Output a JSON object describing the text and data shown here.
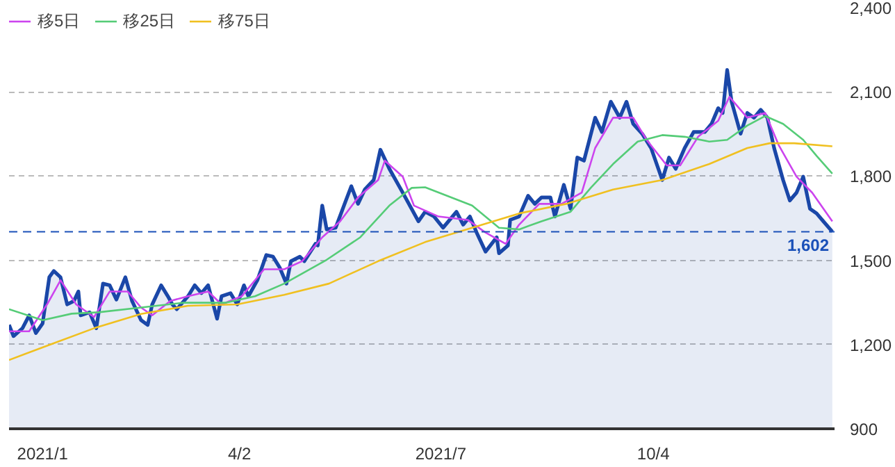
{
  "chart_data": {
    "type": "line",
    "xlim": [
      "2020-12-20",
      "2021-12-24"
    ],
    "xticks": [
      {
        "value": "2021-01-04",
        "label": "2021/1"
      },
      {
        "value": "2021-04-02",
        "label": "4/2"
      },
      {
        "value": "2021-07-01",
        "label": "2021/7"
      },
      {
        "value": "2021-10-04",
        "label": "10/4"
      }
    ],
    "ylim": [
      900,
      2400
    ],
    "yticks": [
      900,
      {
        "value": 1200,
        "label": "1,200"
      },
      {
        "value": 1500,
        "label": "1,500"
      },
      {
        "value": 1800,
        "label": "1,800"
      },
      {
        "value": 2100,
        "label": "2,100"
      },
      {
        "value": 2400,
        "label": "2,400"
      }
    ],
    "grid": "y",
    "legend": "top left",
    "ref_lines": [
      {
        "axis": "y",
        "value": 1602,
        "label": "1,602",
        "color": "#1a50b8",
        "line_style": "dashed"
      }
    ],
    "series": [
      {
        "type": "area",
        "color": "#1a47a8",
        "x": [
          "2020-12-20",
          "2020-12-22",
          "2020-12-26",
          "2020-12-29",
          "2021-01-01",
          "2021-01-04",
          "2021-01-07",
          "2021-01-09",
          "2021-01-12",
          "2021-01-15",
          "2021-01-18",
          "2021-01-20",
          "2021-01-21",
          "2021-01-25",
          "2021-01-28",
          "2021-01-31",
          "2021-02-03",
          "2021-02-06",
          "2021-02-10",
          "2021-02-13",
          "2021-02-17",
          "2021-02-20",
          "2021-02-22",
          "2021-02-26",
          "2021-03-01",
          "2021-03-03",
          "2021-03-05",
          "2021-03-10",
          "2021-03-13",
          "2021-03-16",
          "2021-03-19",
          "2021-03-23",
          "2021-03-25",
          "2021-03-29",
          "2021-04-01",
          "2021-04-04",
          "2021-04-06",
          "2021-04-10",
          "2021-04-14",
          "2021-04-17",
          "2021-04-20",
          "2021-04-23",
          "2021-04-25",
          "2021-04-29",
          "2021-05-01",
          "2021-05-06",
          "2021-05-07",
          "2021-05-09",
          "2021-05-11",
          "2021-05-15",
          "2021-05-19",
          "2021-05-22",
          "2021-05-25",
          "2021-05-28",
          "2021-06-01",
          "2021-06-04",
          "2021-06-08",
          "2021-06-14",
          "2021-06-21",
          "2021-06-24",
          "2021-06-28",
          "2021-07-02",
          "2021-07-08",
          "2021-07-11",
          "2021-07-14",
          "2021-07-17",
          "2021-07-21",
          "2021-07-26",
          "2021-07-27",
          "2021-07-31",
          "2021-08-01",
          "2021-08-05",
          "2021-08-09",
          "2021-08-12",
          "2021-08-15",
          "2021-08-19",
          "2021-08-21",
          "2021-08-25",
          "2021-08-28",
          "2021-08-31",
          "2021-09-03",
          "2021-09-08",
          "2021-09-11",
          "2021-09-15",
          "2021-09-19",
          "2021-09-22",
          "2021-09-25",
          "2021-09-29",
          "2021-10-03",
          "2021-10-08",
          "2021-10-11",
          "2021-10-14",
          "2021-10-18",
          "2021-10-22",
          "2021-10-27",
          "2021-10-30",
          "2021-11-02",
          "2021-11-04",
          "2021-11-06",
          "2021-11-08",
          "2021-11-12",
          "2021-11-15",
          "2021-11-18",
          "2021-11-21",
          "2021-11-24",
          "2021-11-27",
          "2021-12-01",
          "2021-12-04",
          "2021-12-07",
          "2021-12-10",
          "2021-12-13",
          "2021-12-16",
          "2021-12-19",
          "2021-12-23"
        ],
        "values": [
          1270,
          1230,
          1258,
          1304,
          1241,
          1275,
          1440,
          1462,
          1440,
          1343,
          1355,
          1389,
          1304,
          1315,
          1258,
          1417,
          1411,
          1360,
          1440,
          1355,
          1287,
          1270,
          1343,
          1411,
          1372,
          1343,
          1326,
          1372,
          1411,
          1383,
          1411,
          1292,
          1372,
          1383,
          1343,
          1411,
          1372,
          1429,
          1519,
          1513,
          1474,
          1417,
          1497,
          1513,
          1497,
          1559,
          1553,
          1695,
          1610,
          1616,
          1701,
          1764,
          1701,
          1752,
          1786,
          1894,
          1826,
          1741,
          1639,
          1673,
          1656,
          1616,
          1673,
          1627,
          1656,
          1599,
          1531,
          1582,
          1525,
          1553,
          1644,
          1656,
          1730,
          1701,
          1724,
          1724,
          1656,
          1769,
          1684,
          1866,
          1855,
          2008,
          1957,
          2065,
          2008,
          2065,
          1986,
          1951,
          1900,
          1786,
          1866,
          1826,
          1900,
          1957,
          1957,
          1986,
          2042,
          2025,
          2178,
          2065,
          1951,
          2025,
          2008,
          2036,
          2008,
          1900,
          1786,
          1713,
          1741,
          1798,
          1684,
          1667,
          1639,
          1602
        ]
      },
      {
        "name": "移5日",
        "color": "#cc44ee",
        "x": [
          "2020-12-20",
          "2020-12-29",
          "2021-01-06",
          "2021-01-12",
          "2021-01-19",
          "2021-01-27",
          "2021-02-03",
          "2021-02-11",
          "2021-02-17",
          "2021-02-22",
          "2021-03-02",
          "2021-03-10",
          "2021-03-19",
          "2021-03-25",
          "2021-04-03",
          "2021-04-13",
          "2021-04-22",
          "2021-04-30",
          "2021-05-09",
          "2021-05-17",
          "2021-05-25",
          "2021-06-03",
          "2021-06-06",
          "2021-06-14",
          "2021-06-19",
          "2021-06-30",
          "2021-07-13",
          "2021-07-21",
          "2021-07-30",
          "2021-08-05",
          "2021-08-14",
          "2021-08-24",
          "2021-09-02",
          "2021-09-08",
          "2021-09-16",
          "2021-09-25",
          "2021-10-01",
          "2021-10-10",
          "2021-10-16",
          "2021-10-24",
          "2021-11-02",
          "2021-11-07",
          "2021-11-15",
          "2021-11-23",
          "2021-11-29",
          "2021-12-07",
          "2021-12-14",
          "2021-12-23"
        ],
        "values": [
          1247,
          1247,
          1343,
          1429,
          1343,
          1298,
          1389,
          1389,
          1332,
          1304,
          1355,
          1372,
          1389,
          1343,
          1372,
          1468,
          1468,
          1497,
          1582,
          1639,
          1724,
          1786,
          1855,
          1798,
          1695,
          1656,
          1644,
          1599,
          1559,
          1627,
          1701,
          1701,
          1741,
          1900,
          2008,
          2008,
          1929,
          1838,
          1838,
          1940,
          1997,
          2082,
          2008,
          2025,
          1911,
          1798,
          1741,
          1639
        ]
      },
      {
        "name": "移25日",
        "color": "#55cc77",
        "x": [
          "2020-12-20",
          "2021-01-04",
          "2021-01-17",
          "2021-01-29",
          "2021-02-17",
          "2021-03-08",
          "2021-03-27",
          "2021-04-09",
          "2021-04-22",
          "2021-05-11",
          "2021-05-26",
          "2021-06-08",
          "2021-06-18",
          "2021-06-24",
          "2021-07-15",
          "2021-07-27",
          "2021-08-05",
          "2021-08-15",
          "2021-08-28",
          "2021-09-06",
          "2021-09-16",
          "2021-09-27",
          "2021-10-08",
          "2021-10-18",
          "2021-10-29",
          "2021-11-06",
          "2021-11-15",
          "2021-11-23",
          "2021-12-01",
          "2021-12-10",
          "2021-12-16",
          "2021-12-23"
        ],
        "values": [
          1326,
          1287,
          1310,
          1315,
          1332,
          1349,
          1349,
          1372,
          1417,
          1502,
          1582,
          1695,
          1758,
          1760,
          1695,
          1616,
          1610,
          1639,
          1673,
          1758,
          1843,
          1923,
          1946,
          1940,
          1923,
          1929,
          1980,
          2014,
          1986,
          1929,
          1872,
          1809
        ]
      },
      {
        "name": "移75日",
        "color": "#f0c020",
        "x": [
          "2020-12-20",
          "2021-01-06",
          "2021-01-27",
          "2021-02-17",
          "2021-03-10",
          "2021-04-01",
          "2021-04-22",
          "2021-05-12",
          "2021-06-03",
          "2021-06-24",
          "2021-07-15",
          "2021-08-05",
          "2021-08-26",
          "2021-09-16",
          "2021-10-08",
          "2021-10-29",
          "2021-11-15",
          "2021-11-25",
          "2021-12-06",
          "2021-12-23"
        ],
        "values": [
          1145,
          1196,
          1258,
          1309,
          1338,
          1343,
          1377,
          1417,
          1497,
          1565,
          1616,
          1667,
          1701,
          1752,
          1786,
          1843,
          1900,
          1917,
          1917,
          1906
        ]
      }
    ]
  }
}
